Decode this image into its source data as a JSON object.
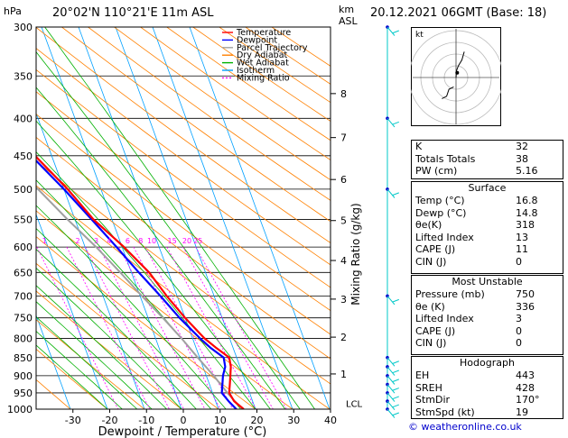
{
  "header": {
    "pressure_unit": "hPa",
    "location": "20°02'N  110°21'E  11m  ASL",
    "height_unit_1": "km",
    "height_unit_2": "ASL",
    "datetime": "20.12.2021  06GMT  (Base: 18)"
  },
  "colors": {
    "temperature": "#ff0000",
    "dewpoint": "#0000ff",
    "parcel": "#a0a0a0",
    "dry_adiabat": "#ff8000",
    "wet_adiabat": "#00b000",
    "isotherm": "#00a0ff",
    "mixing_ratio": "#ff00ff",
    "wind": "#00c8c8"
  },
  "chart_data": {
    "type": "skew-t",
    "xlabel": "Dewpoint / Temperature (°C)",
    "ylabel": "Mixing Ratio (g/kg)",
    "pressure_levels": [
      300,
      350,
      400,
      450,
      500,
      550,
      600,
      650,
      700,
      750,
      800,
      850,
      900,
      950,
      1000
    ],
    "pressure_tick_labels": [
      "300",
      "350",
      "400",
      "450",
      "500",
      "550",
      "600",
      "650",
      "700",
      "750",
      "800",
      "850",
      "900",
      "950",
      "1000"
    ],
    "temperature_ticks": [
      -30,
      -20,
      -10,
      0,
      10,
      20,
      30,
      40
    ],
    "temperature_tick_labels": [
      "-30",
      "-20",
      "-10",
      "0",
      "10",
      "20",
      "30",
      "40"
    ],
    "xlim": [
      -40,
      40
    ],
    "ylim_hpa": [
      1000,
      300
    ],
    "height_km": [
      {
        "km": 1,
        "p": 895,
        "label": "1"
      },
      {
        "km": 2,
        "p": 797,
        "label": "2"
      },
      {
        "km": 3,
        "p": 707,
        "label": "3"
      },
      {
        "km": 4,
        "p": 626,
        "label": "4"
      },
      {
        "km": 5,
        "p": 552,
        "label": "5"
      },
      {
        "km": 6,
        "p": 485,
        "label": "6"
      },
      {
        "km": 7,
        "p": 425,
        "label": "7"
      },
      {
        "km": 8,
        "p": 370,
        "label": "8"
      }
    ],
    "lcl": {
      "p": 982,
      "label": "LCL"
    },
    "mixing_ratio_labels": [
      {
        "w": 1,
        "label": "1",
        "t": -21
      },
      {
        "w": 2,
        "label": "2",
        "t": -12
      },
      {
        "w": 3,
        "label": "3",
        "t": -7
      },
      {
        "w": 4,
        "label": "4",
        "t": -3.5
      },
      {
        "w": 6,
        "label": "6",
        "t": 1.5
      },
      {
        "w": 8,
        "label": "8",
        "t": 5
      },
      {
        "w": 10,
        "label": "10",
        "t": 8
      },
      {
        "w": 15,
        "label": "15",
        "t": 13.5
      },
      {
        "w": 20,
        "label": "20",
        "t": 17.5
      },
      {
        "w": 25,
        "label": "25",
        "t": 20.5
      }
    ],
    "series": [
      {
        "name": "Temperature",
        "points": [
          [
            1000,
            16.8
          ],
          [
            975,
            15.0
          ],
          [
            950,
            14.5
          ],
          [
            925,
            15.5
          ],
          [
            900,
            16.5
          ],
          [
            875,
            17.5
          ],
          [
            850,
            18.0
          ],
          [
            825,
            15.5
          ],
          [
            800,
            13.2
          ],
          [
            750,
            10.0
          ],
          [
            700,
            7.2
          ],
          [
            650,
            4.8
          ],
          [
            600,
            0.5
          ],
          [
            550,
            -5.0
          ],
          [
            500,
            -9.0
          ],
          [
            450,
            -14.5
          ],
          [
            400,
            -21.5
          ],
          [
            350,
            -29.5
          ],
          [
            330,
            -33.0
          ]
        ]
      },
      {
        "name": "Dewpoint",
        "points": [
          [
            1000,
            14.8
          ],
          [
            975,
            13.5
          ],
          [
            950,
            12.5
          ],
          [
            925,
            13.5
          ],
          [
            900,
            14.5
          ],
          [
            875,
            16.0
          ],
          [
            850,
            16.5
          ],
          [
            825,
            14.0
          ],
          [
            800,
            12.0
          ],
          [
            750,
            8.5
          ],
          [
            700,
            5.5
          ],
          [
            650,
            2.0
          ],
          [
            600,
            -1.5
          ],
          [
            550,
            -5.5
          ],
          [
            500,
            -10.0
          ],
          [
            450,
            -15.5
          ],
          [
            400,
            -22.5
          ],
          [
            350,
            -30.0
          ],
          [
            330,
            -34.0
          ]
        ]
      },
      {
        "name": "Parcel Trajectory",
        "points": [
          [
            1000,
            16.8
          ],
          [
            982,
            15.5
          ],
          [
            950,
            14.0
          ],
          [
            900,
            12.0
          ],
          [
            850,
            9.5
          ],
          [
            800,
            7.0
          ],
          [
            750,
            4.0
          ],
          [
            700,
            0.5
          ],
          [
            650,
            -3.0
          ],
          [
            600,
            -7.0
          ],
          [
            550,
            -12.0
          ],
          [
            500,
            -17.0
          ],
          [
            450,
            -23.0
          ],
          [
            400,
            -30.0
          ],
          [
            350,
            -38.0
          ],
          [
            300,
            -46.0
          ]
        ]
      }
    ],
    "wind_barbs_hpa": [
      300,
      400,
      500,
      700,
      850,
      875,
      900,
      925,
      950,
      975,
      1000
    ],
    "legend": [
      {
        "label": "Temperature",
        "key": "temperature",
        "dash": false
      },
      {
        "label": "Dewpoint",
        "key": "dewpoint",
        "dash": false
      },
      {
        "label": "Parcel Trajectory",
        "key": "parcel",
        "dash": false
      },
      {
        "label": "Dry Adiabat",
        "key": "dry_adiabat",
        "dash": false
      },
      {
        "label": "Wet Adiabat",
        "key": "wet_adiabat",
        "dash": false
      },
      {
        "label": "Isotherm",
        "key": "isotherm",
        "dash": false
      },
      {
        "label": "Mixing Ratio",
        "key": "mixing_ratio",
        "dash": true
      }
    ],
    "hodograph": {
      "unit_label": "kt",
      "trace": [
        [
          0,
          0
        ],
        [
          0.5,
          -6
        ],
        [
          2,
          -10
        ],
        [
          5,
          -15
        ],
        [
          7,
          -22
        ]
      ],
      "trace2": [
        [
          -2,
          8
        ],
        [
          -6,
          10
        ],
        [
          -8,
          16
        ],
        [
          -12,
          18
        ]
      ],
      "storm_motion": [
        1,
        -4
      ]
    }
  },
  "indices": {
    "k_label": "K",
    "k": "32",
    "tt_label": "Totals Totals",
    "tt": "38",
    "pw_label": "PW (cm)",
    "pw": "5.16"
  },
  "surface": {
    "title": "Surface",
    "temp_label": "Temp (°C)",
    "temp": "16.8",
    "dewp_label": "Dewp (°C)",
    "dewp": "14.8",
    "theta_label": "θe(K)",
    "theta": "318",
    "li_label": "Lifted Index",
    "li": "13",
    "cape_label": "CAPE (J)",
    "cape": "11",
    "cin_label": "CIN (J)",
    "cin": "0"
  },
  "most_unstable": {
    "title": "Most Unstable",
    "pres_label": "Pressure (mb)",
    "pres": "750",
    "theta_label": "θe (K)",
    "theta": "336",
    "li_label": "Lifted Index",
    "li": "3",
    "cape_label": "CAPE (J)",
    "cape": "0",
    "cin_label": "CIN (J)",
    "cin": "0"
  },
  "hodograph_table": {
    "title": "Hodograph",
    "eh_label": "EH",
    "eh": "443",
    "sreh_label": "SREH",
    "sreh": "428",
    "stmdir_label": "StmDir",
    "stmdir": "170°",
    "stmspd_label": "StmSpd (kt)",
    "stmspd": "19"
  },
  "footer": {
    "copyright": "© weatheronline.co.uk"
  }
}
